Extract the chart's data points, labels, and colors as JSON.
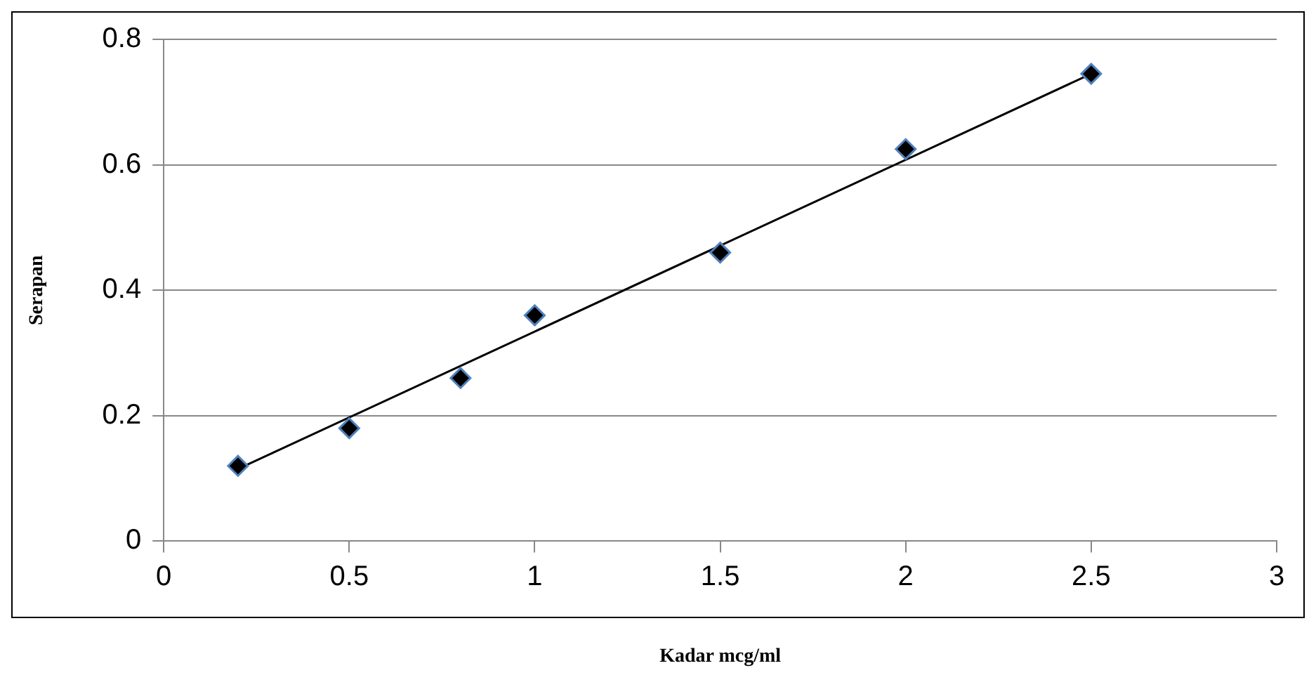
{
  "chart_data": {
    "type": "scatter",
    "xlabel": "Kadar mcg/ml",
    "ylabel": "Serapan",
    "x": [
      0.2,
      0.5,
      0.8,
      1.0,
      1.5,
      2.0,
      2.5
    ],
    "series": [
      {
        "color": "#000000",
        "values": [
          0.12,
          0.18,
          0.26,
          0.36,
          0.46,
          0.625,
          0.745
        ],
        "marker": "diamond"
      },
      {
        "type": "line",
        "color": "#000000",
        "x": [
          0.2,
          2.5
        ],
        "values": [
          0.115,
          0.745
        ],
        "marker": "none"
      }
    ],
    "xlim": [
      0,
      3
    ],
    "xticks": [
      0,
      0.5,
      1,
      1.5,
      2,
      2.5,
      3
    ],
    "ylim": [
      0,
      0.8
    ],
    "yticks": [
      0,
      0.2,
      0.4,
      0.6,
      0.8
    ],
    "grid": "y",
    "legend": false
  }
}
